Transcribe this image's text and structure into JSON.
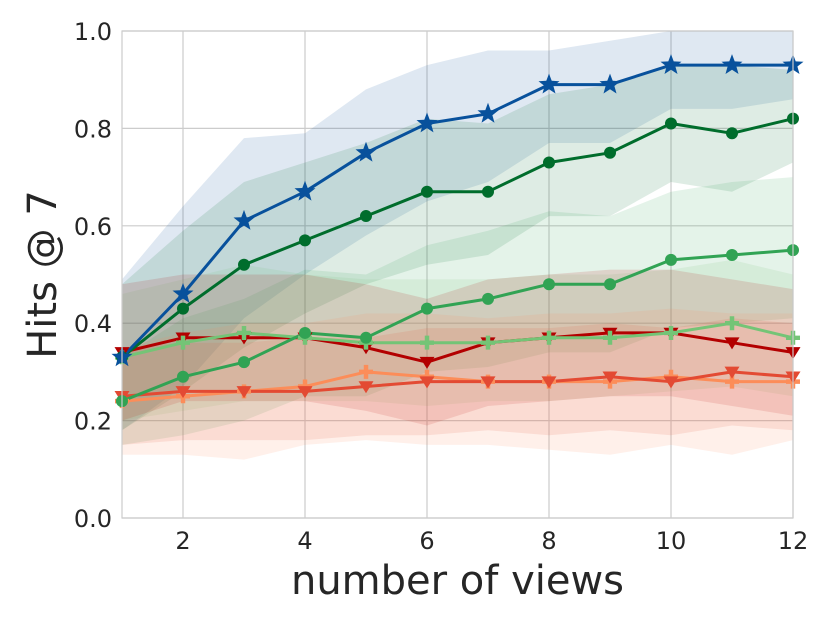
{
  "chart_data": {
    "type": "line",
    "title": "",
    "xlabel": "number of views",
    "ylabel": "Hits @ 7",
    "xlim": [
      1,
      12
    ],
    "ylim": [
      0.0,
      1.0
    ],
    "x_ticks": [
      "2",
      "4",
      "6",
      "8",
      "10",
      "12"
    ],
    "y_ticks": [
      "0.0",
      "0.2",
      "0.4",
      "0.6",
      "0.8",
      "1.0"
    ],
    "grid": true,
    "legend": "none",
    "x": [
      1,
      2,
      3,
      4,
      5,
      6,
      7,
      8,
      9,
      10,
      11,
      12
    ],
    "series": [
      {
        "color": "#08519c",
        "marker": "star",
        "values": [
          0.33,
          0.46,
          0.61,
          0.67,
          0.75,
          0.81,
          0.83,
          0.89,
          0.89,
          0.93,
          0.93,
          0.93
        ],
        "lower": [
          0.18,
          0.27,
          0.41,
          0.5,
          0.58,
          0.65,
          0.69,
          0.77,
          0.77,
          0.84,
          0.84,
          0.86
        ],
        "upper": [
          0.49,
          0.64,
          0.78,
          0.79,
          0.88,
          0.93,
          0.96,
          0.96,
          0.98,
          1.0,
          1.0,
          1.0
        ]
      },
      {
        "color": "#006d2c",
        "marker": "circle",
        "values": [
          0.33,
          0.43,
          0.52,
          0.57,
          0.62,
          0.67,
          0.67,
          0.73,
          0.75,
          0.81,
          0.79,
          0.82
        ],
        "lower": [
          0.18,
          0.26,
          0.35,
          0.42,
          0.48,
          0.52,
          0.54,
          0.62,
          0.62,
          0.69,
          0.67,
          0.73
        ],
        "upper": [
          0.48,
          0.59,
          0.69,
          0.73,
          0.77,
          0.82,
          0.81,
          0.87,
          0.89,
          0.93,
          0.93,
          0.92
        ]
      },
      {
        "color": "#31a354",
        "marker": "circle",
        "values": [
          0.24,
          0.29,
          0.32,
          0.38,
          0.37,
          0.43,
          0.45,
          0.48,
          0.48,
          0.53,
          0.54,
          0.55
        ],
        "lower": [
          0.15,
          0.17,
          0.2,
          0.25,
          0.25,
          0.3,
          0.31,
          0.34,
          0.34,
          0.39,
          0.4,
          0.41
        ],
        "upper": [
          0.33,
          0.41,
          0.45,
          0.51,
          0.5,
          0.56,
          0.59,
          0.63,
          0.62,
          0.67,
          0.69,
          0.7
        ]
      },
      {
        "color": "#74c476",
        "marker": "plus",
        "values": [
          0.33,
          0.36,
          0.38,
          0.37,
          0.36,
          0.36,
          0.36,
          0.37,
          0.37,
          0.38,
          0.4,
          0.37
        ],
        "lower": [
          0.2,
          0.22,
          0.24,
          0.24,
          0.24,
          0.23,
          0.24,
          0.24,
          0.25,
          0.26,
          0.27,
          0.25
        ],
        "upper": [
          0.46,
          0.49,
          0.52,
          0.5,
          0.49,
          0.49,
          0.49,
          0.5,
          0.5,
          0.51,
          0.53,
          0.5
        ]
      },
      {
        "color": "#b30000",
        "marker": "triangle-down",
        "values": [
          0.34,
          0.37,
          0.37,
          0.37,
          0.35,
          0.32,
          0.36,
          0.37,
          0.38,
          0.38,
          0.36,
          0.34
        ],
        "lower": [
          0.2,
          0.24,
          0.24,
          0.24,
          0.22,
          0.19,
          0.23,
          0.24,
          0.25,
          0.25,
          0.23,
          0.21
        ],
        "upper": [
          0.48,
          0.5,
          0.5,
          0.5,
          0.48,
          0.45,
          0.49,
          0.5,
          0.51,
          0.51,
          0.49,
          0.47
        ]
      },
      {
        "color": "#e34a33",
        "marker": "triangle-down",
        "values": [
          0.25,
          0.26,
          0.26,
          0.26,
          0.27,
          0.28,
          0.28,
          0.28,
          0.29,
          0.28,
          0.3,
          0.29
        ],
        "lower": [
          0.15,
          0.16,
          0.16,
          0.16,
          0.17,
          0.17,
          0.18,
          0.17,
          0.18,
          0.17,
          0.19,
          0.18
        ],
        "upper": [
          0.35,
          0.36,
          0.36,
          0.37,
          0.37,
          0.39,
          0.39,
          0.39,
          0.4,
          0.39,
          0.41,
          0.4
        ]
      },
      {
        "color": "#fc8d59",
        "marker": "plus",
        "values": [
          0.24,
          0.25,
          0.26,
          0.27,
          0.3,
          0.29,
          0.28,
          0.28,
          0.28,
          0.29,
          0.28,
          0.28
        ],
        "lower": [
          0.13,
          0.13,
          0.12,
          0.15,
          0.16,
          0.15,
          0.15,
          0.14,
          0.13,
          0.15,
          0.13,
          0.16
        ],
        "upper": [
          0.35,
          0.38,
          0.4,
          0.4,
          0.42,
          0.42,
          0.41,
          0.42,
          0.42,
          0.43,
          0.42,
          0.42
        ]
      }
    ]
  }
}
